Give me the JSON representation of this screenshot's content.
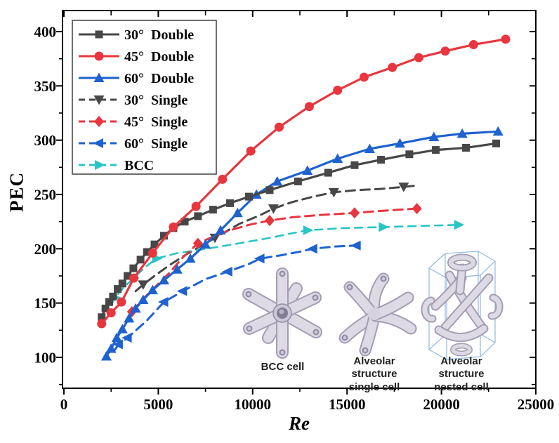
{
  "figure": {
    "xlabel": "Re",
    "ylabel": "PEC",
    "insets": {
      "bcc_caption": "BCC cell",
      "single_caption_line1": "Alveolar structure",
      "single_caption_line2": "single cell",
      "nested_caption_line1": "Alveolar structure",
      "nested_caption_line2": "nested cell"
    }
  },
  "chart_data": {
    "type": "line",
    "title": "",
    "xlabel": "Re",
    "ylabel": "PEC",
    "xlim": [
      0,
      25000
    ],
    "ylim": [
      71,
      419
    ],
    "grid": false,
    "legend_position": "upper-left",
    "x_ticks": [
      0,
      5000,
      10000,
      15000,
      20000,
      25000
    ],
    "x_minor_ticks": [
      2500,
      7500,
      12500,
      17500,
      22500
    ],
    "y_ticks": [
      100,
      150,
      200,
      250,
      300,
      350,
      400
    ],
    "y_minor_ticks": [
      75,
      125,
      175,
      225,
      275,
      325,
      375
    ],
    "series": [
      {
        "name": "30°  Double",
        "color": "#474747",
        "line": "solid",
        "marker": "square",
        "points": [
          [
            2000,
            137
          ],
          [
            2200,
            145
          ],
          [
            2400,
            151
          ],
          [
            2600,
            156
          ],
          [
            2850,
            163
          ],
          [
            3100,
            168
          ],
          [
            3370,
            175
          ],
          [
            3680,
            182
          ],
          [
            4060,
            190
          ],
          [
            4400,
            197
          ],
          [
            4800,
            204
          ],
          [
            5300,
            212
          ],
          [
            5800,
            219
          ],
          [
            6400,
            225
          ],
          [
            7100,
            230
          ],
          [
            7900,
            236
          ],
          [
            8800,
            242
          ],
          [
            9800,
            248
          ],
          [
            10900,
            254
          ],
          [
            12400,
            262
          ],
          [
            14000,
            270
          ],
          [
            15400,
            277
          ],
          [
            16800,
            282
          ],
          [
            18300,
            287
          ],
          [
            19700,
            291
          ],
          [
            21300,
            293
          ],
          [
            22900,
            297
          ]
        ]
      },
      {
        "name": "45°  Double",
        "color": "#e8353e",
        "line": "solid",
        "marker": "circle",
        "points": [
          [
            2000,
            131
          ],
          [
            2500,
            141
          ],
          [
            3050,
            151
          ],
          [
            3700,
            173
          ],
          [
            4700,
            196
          ],
          [
            5800,
            220
          ],
          [
            7000,
            239
          ],
          [
            8400,
            264
          ],
          [
            9900,
            290
          ],
          [
            11400,
            312
          ],
          [
            13000,
            331
          ],
          [
            14500,
            346
          ],
          [
            15900,
            358
          ],
          [
            17400,
            367
          ],
          [
            18800,
            376
          ],
          [
            20200,
            382
          ],
          [
            21700,
            388
          ],
          [
            23400,
            393
          ]
        ]
      },
      {
        "name": "60°  Double",
        "color": "#1e62cf",
        "line": "solid",
        "marker": "triangle-up",
        "points": [
          [
            2250,
            101
          ],
          [
            2500,
            108
          ],
          [
            2800,
            118
          ],
          [
            3100,
            126
          ],
          [
            3450,
            136
          ],
          [
            3800,
            145
          ],
          [
            4200,
            153
          ],
          [
            4700,
            162
          ],
          [
            5300,
            171
          ],
          [
            6000,
            181
          ],
          [
            6700,
            191
          ],
          [
            7500,
            204
          ],
          [
            8300,
            217
          ],
          [
            9200,
            233
          ],
          [
            10200,
            250
          ],
          [
            11300,
            262
          ],
          [
            12900,
            272
          ],
          [
            14500,
            283
          ],
          [
            16200,
            292
          ],
          [
            17800,
            297
          ],
          [
            19600,
            303
          ],
          [
            21100,
            306
          ],
          [
            23000,
            308
          ]
        ]
      },
      {
        "name": "30°  Single",
        "color": "#474747",
        "line": "dashed",
        "marker": "triangle-down",
        "points": [
          [
            3800,
            161
          ],
          [
            4200,
            167
          ],
          [
            4800,
            175
          ],
          [
            5600,
            185
          ],
          [
            6500,
            195
          ],
          [
            7300,
            203
          ],
          [
            8000,
            210
          ],
          [
            9300,
            223
          ],
          [
            10400,
            231
          ],
          [
            11100,
            237
          ],
          [
            12100,
            243
          ],
          [
            13200,
            248
          ],
          [
            14300,
            252
          ],
          [
            15500,
            254
          ],
          [
            16700,
            255
          ],
          [
            18000,
            257
          ],
          [
            18600,
            258
          ]
        ],
        "marker_points": [
          [
            4200,
            167
          ],
          [
            8000,
            210
          ],
          [
            11100,
            237
          ],
          [
            14300,
            252
          ],
          [
            18000,
            257
          ]
        ]
      },
      {
        "name": "45°  Single",
        "color": "#e8353e",
        "line": "dashed",
        "marker": "diamond",
        "points": [
          [
            3600,
            142
          ],
          [
            4200,
            154
          ],
          [
            4900,
            166
          ],
          [
            5600,
            178
          ],
          [
            6300,
            192
          ],
          [
            7100,
            205
          ],
          [
            7900,
            211
          ],
          [
            8800,
            217
          ],
          [
            9800,
            222
          ],
          [
            10900,
            226
          ],
          [
            12100,
            229
          ],
          [
            13500,
            231
          ],
          [
            15400,
            233
          ],
          [
            16900,
            235
          ],
          [
            18700,
            237
          ]
        ],
        "marker_points": [
          [
            3600,
            142
          ],
          [
            7100,
            205
          ],
          [
            10900,
            226
          ],
          [
            15400,
            233
          ],
          [
            18700,
            237
          ]
        ]
      },
      {
        "name": "60°  Single",
        "color": "#1e62cf",
        "line": "dashed",
        "marker": "triangle-left",
        "points": [
          [
            2700,
            107
          ],
          [
            2900,
            112
          ],
          [
            3370,
            118
          ],
          [
            4400,
            134
          ],
          [
            5300,
            151
          ],
          [
            6300,
            161
          ],
          [
            7500,
            172
          ],
          [
            8700,
            179
          ],
          [
            9800,
            186
          ],
          [
            10400,
            191
          ],
          [
            11500,
            194
          ],
          [
            12400,
            197
          ],
          [
            13200,
            200
          ],
          [
            14300,
            202
          ],
          [
            15500,
            203
          ]
        ],
        "marker_points": [
          [
            2900,
            112
          ],
          [
            3370,
            118
          ],
          [
            5300,
            151
          ],
          [
            6300,
            161
          ],
          [
            8700,
            179
          ],
          [
            10400,
            191
          ],
          [
            13200,
            200
          ],
          [
            15500,
            203
          ]
        ]
      },
      {
        "name": "BCC",
        "color": "#2ac4c6",
        "line": "dashed",
        "marker": "triangle-right",
        "points": [
          [
            2500,
            148
          ],
          [
            2700,
            155
          ],
          [
            3200,
            165
          ],
          [
            3700,
            173
          ],
          [
            4300,
            183
          ],
          [
            4900,
            191
          ],
          [
            6000,
            196
          ],
          [
            7200,
            199
          ],
          [
            8600,
            203
          ],
          [
            9600,
            206
          ],
          [
            10900,
            210
          ],
          [
            12000,
            214
          ],
          [
            12900,
            217
          ],
          [
            14800,
            219
          ],
          [
            16900,
            220
          ],
          [
            18800,
            221
          ],
          [
            20900,
            222
          ]
        ],
        "marker_points": [
          [
            2700,
            155
          ],
          [
            3700,
            173
          ],
          [
            4900,
            191
          ],
          [
            12900,
            217
          ],
          [
            16900,
            220
          ],
          [
            20900,
            222
          ]
        ]
      }
    ]
  }
}
